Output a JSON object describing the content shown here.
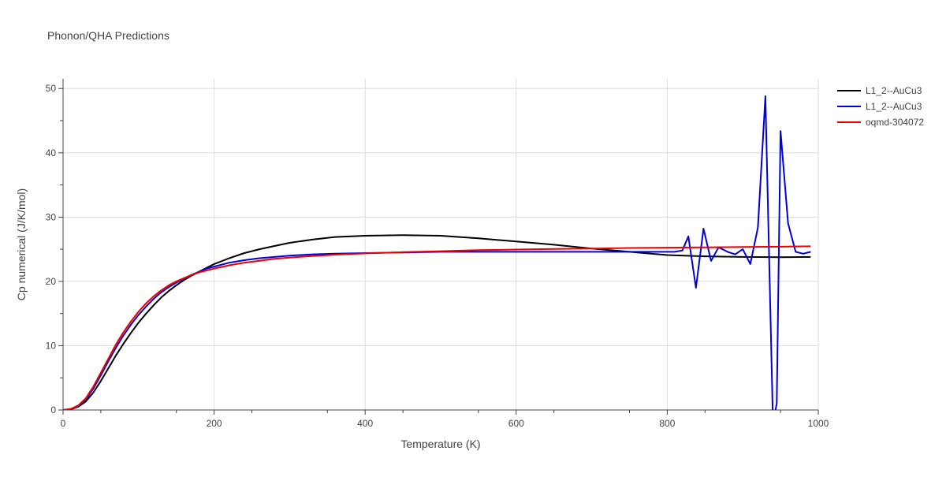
{
  "chart_data": {
    "type": "line",
    "title": "Phonon/QHA Predictions",
    "xlabel": "Temperature (K)",
    "ylabel": "Cp numerical (J/K/mol)",
    "xlim": [
      0,
      1000
    ],
    "ylim": [
      0,
      51.5
    ],
    "x_ticks": [
      0,
      200,
      400,
      600,
      800,
      1000
    ],
    "y_ticks": [
      0,
      10,
      20,
      30,
      40,
      50
    ],
    "grid": true,
    "legend_position": "top-right",
    "series": [
      {
        "name": "L1_2--AuCu3",
        "color": "#000000",
        "x": [
          0,
          10,
          20,
          30,
          40,
          50,
          60,
          70,
          80,
          90,
          100,
          110,
          120,
          130,
          140,
          150,
          160,
          170,
          180,
          190,
          200,
          220,
          240,
          260,
          280,
          300,
          330,
          360,
          400,
          450,
          500,
          550,
          600,
          650,
          700,
          750,
          800,
          850,
          900,
          950,
          990
        ],
        "y": [
          0,
          0.1,
          0.5,
          1.3,
          2.7,
          4.5,
          6.5,
          8.5,
          10.3,
          12.0,
          13.6,
          15.0,
          16.3,
          17.5,
          18.5,
          19.4,
          20.2,
          20.9,
          21.5,
          22.1,
          22.7,
          23.6,
          24.4,
          25.0,
          25.5,
          26.0,
          26.5,
          26.9,
          27.1,
          27.2,
          27.1,
          26.7,
          26.2,
          25.7,
          25.1,
          24.6,
          24.1,
          23.9,
          23.8,
          23.75,
          23.8
        ]
      },
      {
        "name": "L1_2--AuCu3",
        "color": "#0000dd",
        "x": [
          0,
          10,
          20,
          30,
          40,
          50,
          60,
          70,
          80,
          90,
          100,
          110,
          120,
          130,
          140,
          150,
          160,
          170,
          180,
          190,
          200,
          220,
          240,
          260,
          280,
          300,
          330,
          360,
          400,
          450,
          500,
          550,
          600,
          650,
          700,
          750,
          780,
          800,
          810,
          820,
          828,
          838,
          848,
          858,
          868,
          880,
          890,
          900,
          910,
          920,
          930,
          940,
          945,
          950,
          960,
          970,
          980,
          990
        ],
        "y": [
          0,
          0.15,
          0.6,
          1.6,
          3.3,
          5.4,
          7.6,
          9.7,
          11.6,
          13.3,
          14.8,
          16.1,
          17.3,
          18.3,
          19.1,
          19.8,
          20.4,
          21.0,
          21.5,
          22.0,
          22.3,
          22.9,
          23.3,
          23.6,
          23.8,
          24.0,
          24.2,
          24.3,
          24.4,
          24.5,
          24.6,
          24.6,
          24.6,
          24.6,
          24.6,
          24.6,
          24.6,
          24.6,
          24.6,
          24.8,
          27.0,
          19.0,
          28.2,
          23.2,
          25.3,
          24.6,
          24.2,
          25.0,
          22.7,
          28.4,
          48.8,
          -2.0,
          1.0,
          43.4,
          29.0,
          24.6,
          24.3,
          24.6
        ]
      },
      {
        "name": "oqmd-304072",
        "color": "#ee0000",
        "x": [
          0,
          10,
          20,
          30,
          40,
          50,
          60,
          70,
          80,
          90,
          100,
          110,
          120,
          130,
          140,
          150,
          160,
          170,
          180,
          190,
          200,
          220,
          240,
          260,
          280,
          300,
          330,
          360,
          400,
          450,
          500,
          550,
          600,
          650,
          700,
          750,
          800,
          850,
          900,
          950,
          990
        ],
        "y": [
          0,
          0.15,
          0.7,
          1.8,
          3.6,
          5.8,
          8.0,
          10.2,
          12.1,
          13.8,
          15.3,
          16.6,
          17.7,
          18.6,
          19.4,
          20.0,
          20.5,
          21.0,
          21.4,
          21.7,
          22.0,
          22.5,
          22.9,
          23.2,
          23.5,
          23.7,
          23.95,
          24.15,
          24.35,
          24.55,
          24.7,
          24.85,
          24.95,
          25.05,
          25.1,
          25.2,
          25.25,
          25.3,
          25.35,
          25.4,
          25.45
        ]
      }
    ]
  }
}
